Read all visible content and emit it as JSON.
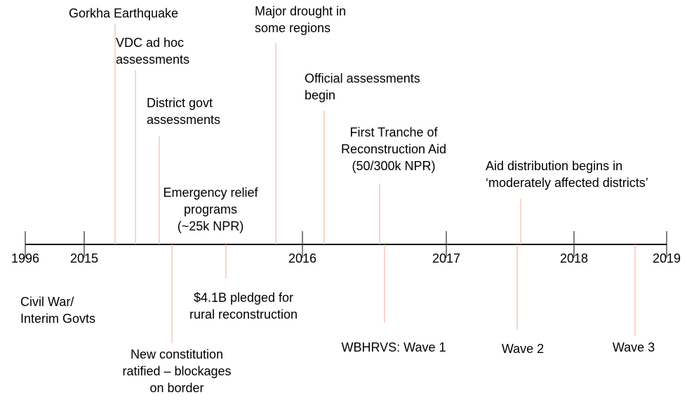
{
  "years": [
    "1996",
    "2015",
    "2016",
    "2017",
    "2018",
    "2019"
  ],
  "events": [
    {
      "lines": [
        "Gorkha Earthquake"
      ]
    },
    {
      "lines": [
        "VDC ad hoc",
        "assessments"
      ]
    },
    {
      "lines": [
        "District govt",
        "assessments"
      ]
    },
    {
      "lines": [
        "Emergency relief",
        "programs",
        "(~25k NPR)"
      ]
    },
    {
      "lines": [
        "Major drought in",
        "some regions"
      ]
    },
    {
      "lines": [
        "Official assessments",
        "begin"
      ]
    },
    {
      "lines": [
        "First Tranche of",
        "Reconstruction Aid",
        "(50/300k NPR)"
      ]
    },
    {
      "lines": [
        "Aid distribution begins in",
        "‘moderately affected districts’"
      ]
    },
    {
      "lines": [
        "$4.1B pledged for",
        "rural reconstruction"
      ]
    },
    {
      "lines": [
        "New constitution",
        "ratified – blockages",
        "on border"
      ]
    },
    {
      "lines": [
        "WBHRVS: Wave 1"
      ]
    },
    {
      "lines": [
        "Wave 2"
      ]
    },
    {
      "lines": [
        "Wave 3"
      ]
    },
    {
      "lines": [
        "Civil War/",
        "Interim Govts"
      ]
    }
  ]
}
